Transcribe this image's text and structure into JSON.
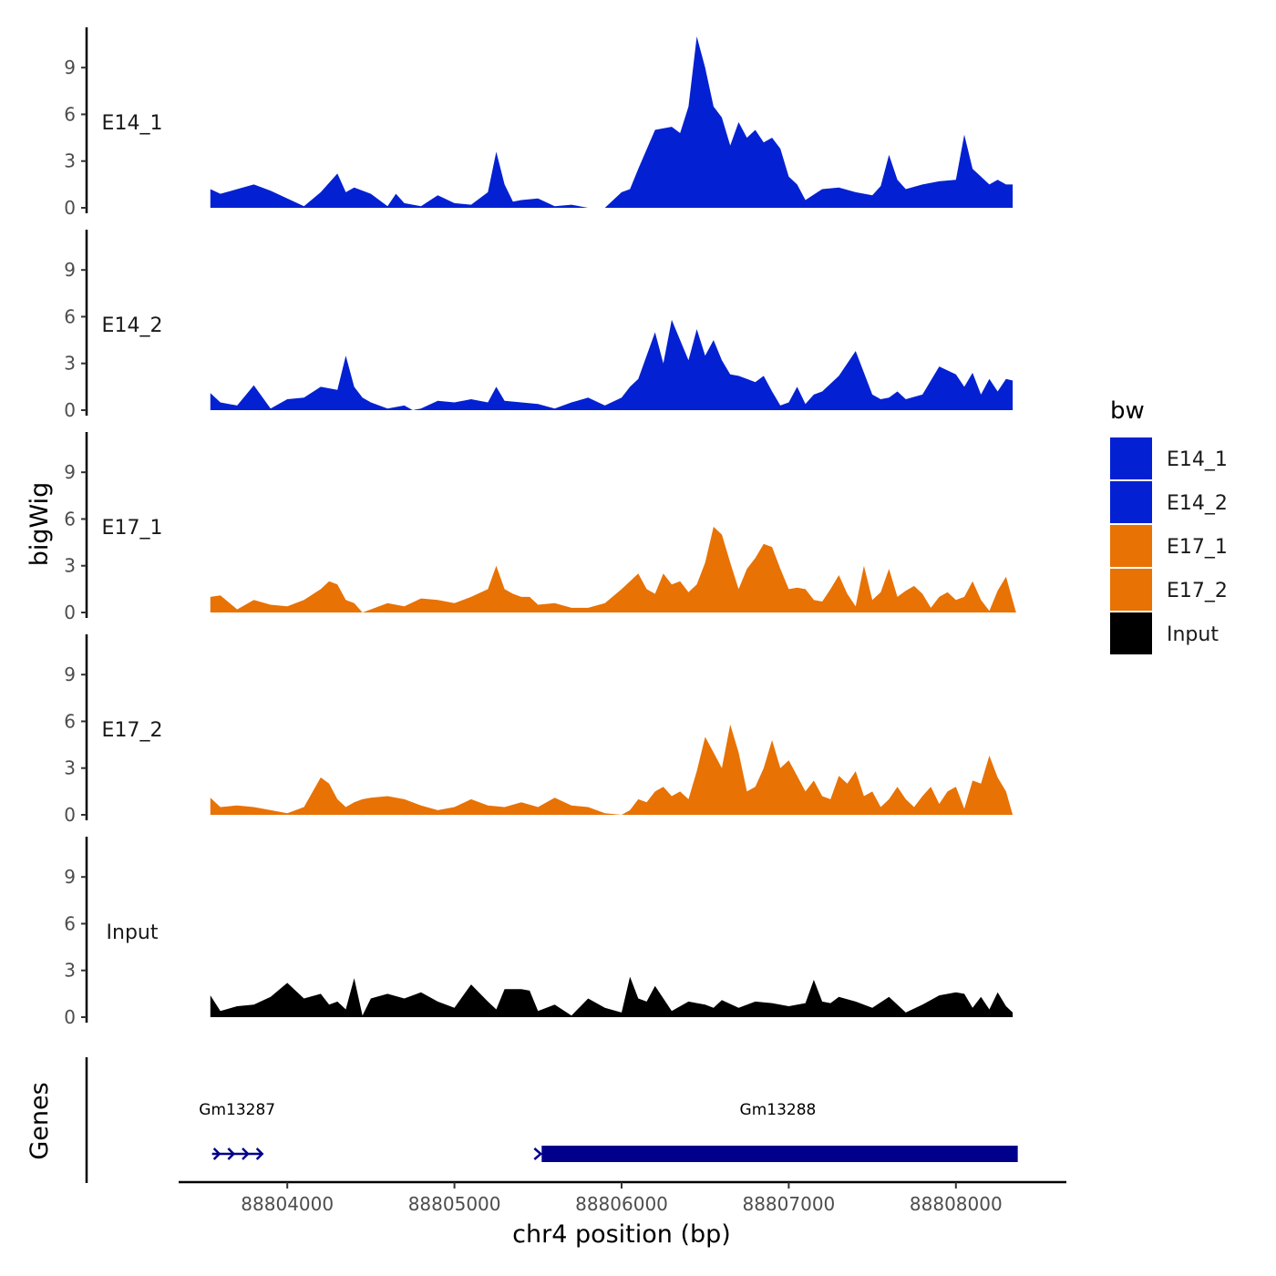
{
  "chart_data": {
    "type": "area",
    "chromosome": "chr4",
    "xlabel": "chr4 position (bp)",
    "ylabel": "bigWig",
    "genes_label": "Genes",
    "xlim": [
      88803350,
      88808650
    ],
    "x_ticks": [
      88804000,
      88805000,
      88806000,
      88807000,
      88808000
    ],
    "x_tick_labels": [
      "88804000",
      "88805000",
      "88806000",
      "88807000",
      "88808000"
    ],
    "ylim": [
      0,
      11
    ],
    "y_ticks": [
      0,
      3,
      6,
      9
    ],
    "y_tick_labels": [
      "0",
      "3",
      "6",
      "9"
    ],
    "legend": {
      "title": "bw",
      "entries": [
        {
          "label": "E14_1",
          "color": "#0321d2"
        },
        {
          "label": "E14_2",
          "color": "#0321d2"
        },
        {
          "label": "E17_1",
          "color": "#e87204"
        },
        {
          "label": "E17_2",
          "color": "#e87204"
        },
        {
          "label": "Input",
          "color": "#000000"
        }
      ]
    },
    "tracks": [
      {
        "name": "E14_1",
        "color": "#0321d2",
        "x": [
          88803540,
          88803600,
          88803700,
          88803800,
          88803900,
          88804000,
          88804100,
          88804200,
          88804300,
          88804350,
          88804400,
          88804500,
          88804600,
          88804650,
          88804700,
          88804800,
          88804900,
          88805000,
          88805100,
          88805200,
          88805250,
          88805300,
          88805350,
          88805400,
          88805500,
          88805600,
          88805700,
          88805800,
          88805900,
          88806000,
          88806050,
          88806100,
          88806200,
          88806300,
          88806350,
          88806400,
          88806450,
          88806500,
          88806550,
          88806600,
          88806650,
          88806700,
          88806750,
          88806800,
          88806850,
          88806900,
          88806950,
          88807000,
          88807050,
          88807100,
          88807200,
          88807300,
          88807400,
          88807500,
          88807550,
          88807600,
          88807650,
          88807700,
          88807800,
          88807900,
          88808000,
          88808050,
          88808100,
          88808150,
          88808200,
          88808250,
          88808300,
          88808340
        ],
        "y": [
          1.2,
          0.9,
          1.2,
          1.5,
          1.1,
          0.6,
          0.1,
          1.0,
          2.2,
          1.0,
          1.3,
          0.9,
          0.1,
          0.9,
          0.3,
          0.1,
          0.8,
          0.3,
          0.2,
          1.0,
          3.6,
          1.5,
          0.4,
          0.5,
          0.6,
          0.1,
          0.2,
          0.0,
          0.0,
          1.0,
          1.2,
          2.5,
          5.0,
          5.2,
          4.8,
          6.5,
          11.0,
          9.0,
          6.5,
          5.8,
          4.0,
          5.5,
          4.5,
          5.0,
          4.2,
          4.5,
          3.8,
          2.0,
          1.5,
          0.5,
          1.2,
          1.3,
          1.0,
          0.8,
          1.4,
          3.4,
          1.8,
          1.2,
          1.5,
          1.7,
          1.8,
          4.7,
          2.5,
          2.0,
          1.5,
          1.8,
          1.5,
          1.5
        ]
      },
      {
        "name": "E14_2",
        "color": "#0321d2",
        "x": [
          88803540,
          88803600,
          88803700,
          88803800,
          88803900,
          88804000,
          88804100,
          88804200,
          88804300,
          88804350,
          88804400,
          88804450,
          88804500,
          88804600,
          88804700,
          88804750,
          88804800,
          88804900,
          88805000,
          88805100,
          88805200,
          88805250,
          88805300,
          88805400,
          88805500,
          88805600,
          88805700,
          88805800,
          88805900,
          88806000,
          88806050,
          88806100,
          88806200,
          88806250,
          88806300,
          88806350,
          88806400,
          88806450,
          88806500,
          88806550,
          88806600,
          88806650,
          88806700,
          88806750,
          88806800,
          88806850,
          88806900,
          88806950,
          88807000,
          88807050,
          88807100,
          88807150,
          88807200,
          88807300,
          88807400,
          88807500,
          88807550,
          88807600,
          88807650,
          88807700,
          88807800,
          88807900,
          88808000,
          88808050,
          88808100,
          88808150,
          88808200,
          88808250,
          88808300,
          88808340
        ],
        "y": [
          1.1,
          0.5,
          0.3,
          1.6,
          0.1,
          0.7,
          0.8,
          1.5,
          1.3,
          3.5,
          1.5,
          0.8,
          0.5,
          0.1,
          0.3,
          0.0,
          0.1,
          0.6,
          0.5,
          0.7,
          0.5,
          1.5,
          0.6,
          0.5,
          0.4,
          0.1,
          0.5,
          0.8,
          0.3,
          0.8,
          1.5,
          2.0,
          5.0,
          3.0,
          5.8,
          4.5,
          3.2,
          5.2,
          3.5,
          4.5,
          3.2,
          2.3,
          2.2,
          2.0,
          1.8,
          2.2,
          1.2,
          0.3,
          0.5,
          1.5,
          0.4,
          1.0,
          1.2,
          2.2,
          3.8,
          1.0,
          0.7,
          0.8,
          1.2,
          0.7,
          1.0,
          2.8,
          2.3,
          1.5,
          2.4,
          1.0,
          2.0,
          1.2,
          2.0,
          1.9
        ]
      },
      {
        "name": "E17_1",
        "color": "#e87204",
        "x": [
          88803540,
          88803600,
          88803700,
          88803800,
          88803900,
          88804000,
          88804100,
          88804200,
          88804250,
          88804300,
          88804350,
          88804400,
          88804450,
          88804500,
          88804600,
          88804700,
          88804800,
          88804900,
          88805000,
          88805100,
          88805200,
          88805250,
          88805300,
          88805350,
          88805400,
          88805450,
          88805500,
          88805600,
          88805700,
          88805800,
          88805900,
          88806000,
          88806100,
          88806150,
          88806200,
          88806250,
          88806300,
          88806350,
          88806400,
          88806450,
          88806500,
          88806550,
          88806600,
          88806650,
          88806700,
          88806750,
          88806800,
          88806850,
          88806900,
          88806950,
          88807000,
          88807050,
          88807100,
          88807150,
          88807200,
          88807250,
          88807300,
          88807350,
          88807400,
          88807450,
          88807500,
          88807550,
          88807600,
          88807650,
          88807700,
          88807750,
          88807800,
          88807850,
          88807900,
          88807950,
          88808000,
          88808050,
          88808100,
          88808150,
          88808200,
          88808250,
          88808300,
          88808360
        ],
        "y": [
          1.0,
          1.1,
          0.2,
          0.8,
          0.5,
          0.4,
          0.8,
          1.5,
          2.0,
          1.8,
          0.8,
          0.6,
          0.0,
          0.2,
          0.6,
          0.4,
          0.9,
          0.8,
          0.6,
          1.0,
          1.5,
          3.0,
          1.5,
          1.2,
          1.0,
          1.0,
          0.5,
          0.6,
          0.3,
          0.3,
          0.6,
          1.5,
          2.5,
          1.5,
          1.2,
          2.5,
          1.8,
          2.0,
          1.3,
          1.8,
          3.2,
          5.5,
          5.0,
          3.2,
          1.5,
          2.8,
          3.5,
          4.4,
          4.2,
          2.8,
          1.5,
          1.6,
          1.5,
          0.8,
          0.7,
          1.5,
          2.4,
          1.2,
          0.4,
          3.0,
          0.8,
          1.3,
          2.8,
          1.0,
          1.4,
          1.7,
          1.2,
          0.3,
          1.0,
          1.3,
          0.8,
          1.0,
          2.0,
          0.8,
          0.1,
          1.4,
          2.3,
          0.0
        ]
      },
      {
        "name": "E17_2",
        "color": "#e87204",
        "x": [
          88803540,
          88803600,
          88803700,
          88803800,
          88803900,
          88804000,
          88804100,
          88804200,
          88804250,
          88804300,
          88804350,
          88804400,
          88804450,
          88804500,
          88804600,
          88804700,
          88804800,
          88804900,
          88805000,
          88805100,
          88805200,
          88805300,
          88805400,
          88805500,
          88805600,
          88805700,
          88805800,
          88805900,
          88806000,
          88806050,
          88806100,
          88806150,
          88806200,
          88806250,
          88806300,
          88806350,
          88806400,
          88806450,
          88806500,
          88806550,
          88806600,
          88806650,
          88806700,
          88806750,
          88806800,
          88806850,
          88806900,
          88806950,
          88807000,
          88807050,
          88807100,
          88807150,
          88807200,
          88807250,
          88807300,
          88807350,
          88807400,
          88807450,
          88807500,
          88807550,
          88807600,
          88807650,
          88807700,
          88807750,
          88807800,
          88807850,
          88807900,
          88807950,
          88808000,
          88808050,
          88808100,
          88808150,
          88808200,
          88808250,
          88808300,
          88808340
        ],
        "y": [
          1.1,
          0.5,
          0.6,
          0.5,
          0.3,
          0.1,
          0.5,
          2.4,
          2.0,
          1.0,
          0.5,
          0.8,
          1.0,
          1.1,
          1.2,
          1.0,
          0.6,
          0.3,
          0.5,
          1.0,
          0.6,
          0.5,
          0.8,
          0.5,
          1.1,
          0.6,
          0.5,
          0.1,
          0.0,
          0.3,
          1.0,
          0.8,
          1.5,
          1.8,
          1.2,
          1.5,
          1.0,
          2.8,
          5.0,
          4.0,
          3.0,
          5.8,
          4.0,
          1.5,
          1.8,
          3.0,
          4.8,
          3.0,
          3.5,
          2.5,
          1.5,
          2.2,
          1.2,
          1.0,
          2.5,
          2.0,
          2.8,
          1.2,
          1.5,
          0.5,
          1.0,
          1.8,
          1.0,
          0.5,
          1.2,
          1.8,
          0.7,
          1.5,
          1.8,
          0.4,
          2.2,
          2.0,
          3.8,
          2.4,
          1.5,
          0.0
        ]
      },
      {
        "name": "Input",
        "color": "#000000",
        "x": [
          88803540,
          88803600,
          88803700,
          88803800,
          88803900,
          88804000,
          88804100,
          88804200,
          88804250,
          88804300,
          88804350,
          88804400,
          88804450,
          88804500,
          88804600,
          88804700,
          88804800,
          88804900,
          88805000,
          88805100,
          88805200,
          88805250,
          88805300,
          88805400,
          88805450,
          88805500,
          88805600,
          88805700,
          88805800,
          88805900,
          88806000,
          88806050,
          88806100,
          88806150,
          88806200,
          88806300,
          88806400,
          88806500,
          88806550,
          88806600,
          88806700,
          88806800,
          88806900,
          88807000,
          88807100,
          88807150,
          88807200,
          88807250,
          88807300,
          88807400,
          88807500,
          88807600,
          88807700,
          88807800,
          88807900,
          88808000,
          88808050,
          88808100,
          88808150,
          88808200,
          88808250,
          88808300,
          88808340
        ],
        "y": [
          1.4,
          0.4,
          0.7,
          0.8,
          1.3,
          2.2,
          1.2,
          1.5,
          0.8,
          1.0,
          0.5,
          2.5,
          0.1,
          1.2,
          1.5,
          1.2,
          1.6,
          1.0,
          0.6,
          2.1,
          1.0,
          0.5,
          1.8,
          1.8,
          1.7,
          0.4,
          0.8,
          0.1,
          1.2,
          0.6,
          0.3,
          2.6,
          1.2,
          1.0,
          2.0,
          0.4,
          1.0,
          0.8,
          0.6,
          1.1,
          0.6,
          1.0,
          0.9,
          0.7,
          0.9,
          2.4,
          1.0,
          0.9,
          1.3,
          1.0,
          0.6,
          1.3,
          0.3,
          0.8,
          1.4,
          1.6,
          1.5,
          0.6,
          1.3,
          0.5,
          1.6,
          0.7,
          0.3
        ]
      }
    ],
    "genes": [
      {
        "name": "Gm13287",
        "start": 88803550,
        "end": 88803850,
        "strand": "+"
      },
      {
        "name": "Gm13288",
        "start": 88805500,
        "end": 88808370,
        "strand": "+"
      }
    ]
  }
}
